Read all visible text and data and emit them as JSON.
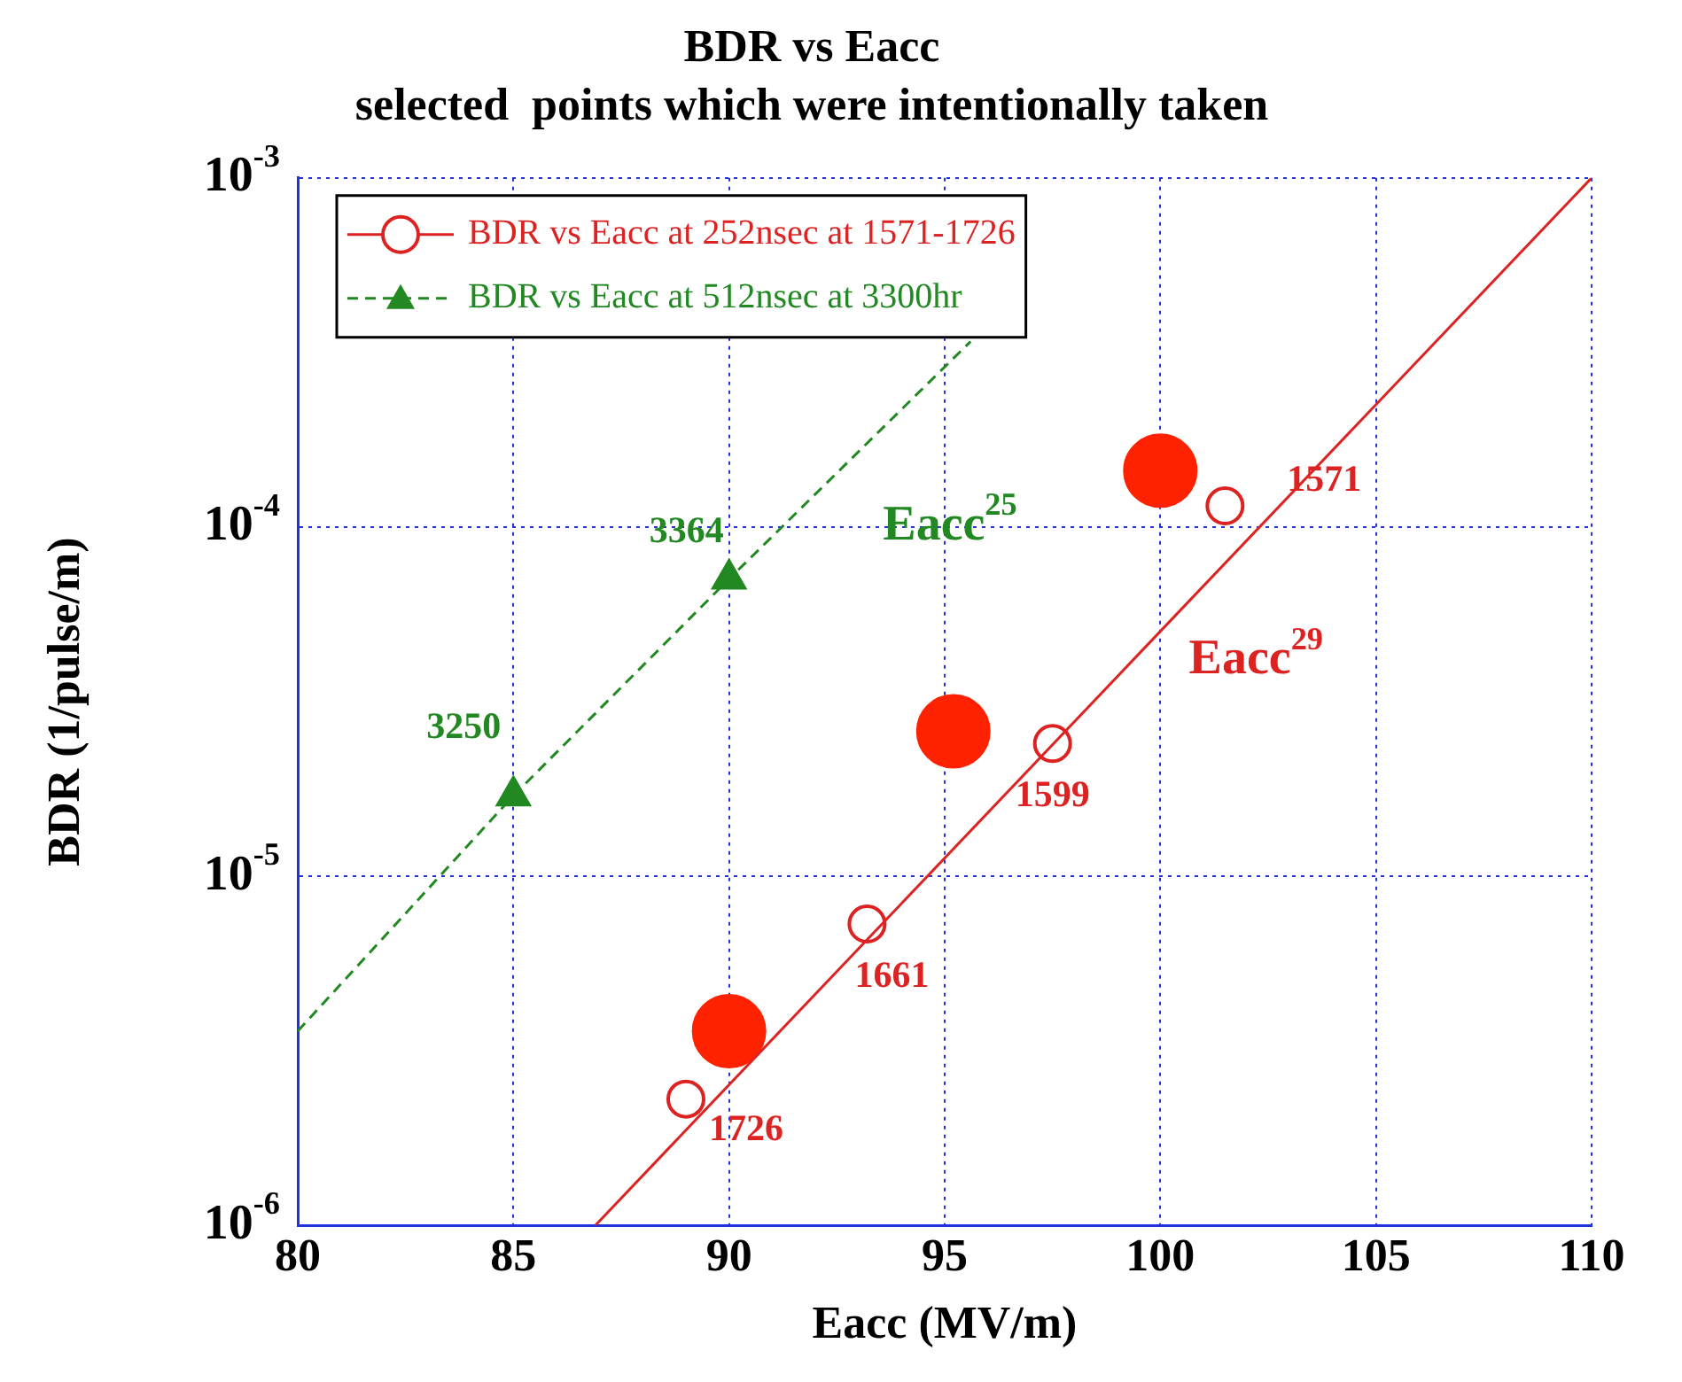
{
  "chart_data": {
    "type": "scatter",
    "title": "BDR vs Eacc",
    "subtitle": "selected  points which were intentionally taken",
    "xlabel": "Eacc (MV/m)",
    "ylabel": "BDR (1/pulse/m)",
    "xlim": [
      80,
      110
    ],
    "xticks": [
      80,
      85,
      90,
      95,
      100,
      105,
      110
    ],
    "ylim": [
      1e-06,
      0.001
    ],
    "yticks": [
      {
        "value": 1e-06,
        "label": "10$^{-6}$"
      },
      {
        "value": 1e-05,
        "label": "10$^{-5}$"
      },
      {
        "value": 0.0001,
        "label": "10$^{-4}$"
      },
      {
        "value": 0.001,
        "label": "10$^{-3}$"
      }
    ],
    "log": "y",
    "grid": true,
    "legend": "top left",
    "series": [
      {
        "name": "BDR vs Eacc at 252nsec at 1571-1726",
        "color": "#dd2222",
        "marker": "circle",
        "x": [
          101.5,
          97.5,
          93.2,
          89
        ],
        "values": [
          0.000115,
          2.4e-05,
          7.3e-06,
          2.3e-06
        ]
      },
      {
        "name": "BDR vs Eacc at 512nsec at 3300hr",
        "color": "#228822",
        "marker": "triangle",
        "line_style": "dashed",
        "x": [
          85,
          90
        ],
        "values": [
          1.7e-05,
          7.1e-05
        ]
      },
      {
        "color": "#dd2222",
        "type": "line",
        "marker": "none",
        "line_style": "solid",
        "x": [
          86.9,
          110
        ],
        "values": [
          1e-06,
          0.001
        ]
      },
      {
        "color": "#228822",
        "type": "line",
        "marker": "none",
        "line_style": "dashed",
        "x": [
          80,
          85,
          90,
          95.6
        ],
        "values": [
          3.6e-06,
          1.7e-05,
          7.1e-05,
          0.00034
        ]
      },
      {
        "color": "#ff2200",
        "marker": "circle",
        "x": [
          90,
          95.2,
          100
        ],
        "values": [
          3.6e-06,
          2.6e-05,
          0.000145
        ]
      }
    ],
    "annotations": [
      {
        "text": "1571",
        "x": 101.5,
        "y": 0.000115
      },
      {
        "text": "1599",
        "x": 97.5,
        "y": 2.4e-05
      },
      {
        "text": "1661",
        "x": 93.2,
        "y": 7.3e-06
      },
      {
        "text": "1726",
        "x": 89,
        "y": 2.3e-06
      },
      {
        "text": "3250",
        "x": 85,
        "y": 1.7e-05
      },
      {
        "text": "3364",
        "x": 90,
        "y": 7.1e-05
      },
      {
        "text": "Eacc$^{25}$",
        "x": 92,
        "y": 0.000124
      },
      {
        "text": "Eacc$^{29}$",
        "x": 100,
        "y": 5e-05
      }
    ]
  }
}
